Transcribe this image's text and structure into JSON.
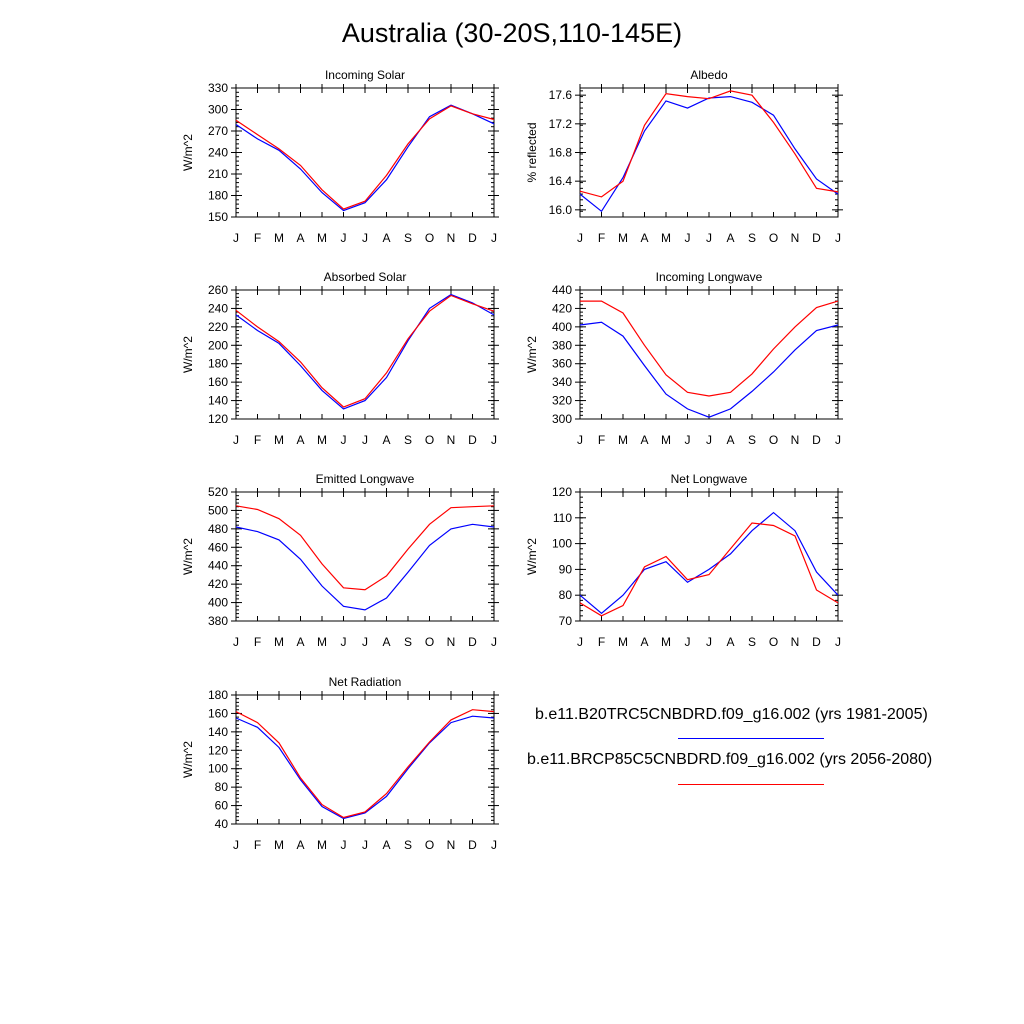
{
  "title": "Australia (30-20S,110-145E)",
  "legend": [
    {
      "label": "b.e11.B20TRC5CNBDRD.f09_g16.002 (yrs 1981-2005)",
      "color": "#0000ff"
    },
    {
      "label": "b.e11.BRCP85C5CNBDRD.f09_g16.002 (yrs 2056-2080)",
      "color": "#ff0000"
    }
  ],
  "colors": {
    "series1": "#0000ff",
    "series2": "#ff0000"
  },
  "chart_data": [
    {
      "type": "line",
      "title": "Incoming Solar",
      "ylabel": "W/m^2",
      "categories": [
        "J",
        "F",
        "M",
        "A",
        "M",
        "J",
        "J",
        "A",
        "S",
        "O",
        "N",
        "D",
        "J"
      ],
      "ylim": [
        150,
        330
      ],
      "yticks": [
        "150",
        "180",
        "210",
        "240",
        "270",
        "300",
        "330"
      ],
      "series": [
        {
          "values": [
            279,
            259,
            243,
            217,
            184,
            159,
            170,
            202,
            248,
            290,
            306,
            294,
            280
          ]
        },
        {
          "values": [
            285,
            265,
            245,
            222,
            188,
            161,
            172,
            208,
            252,
            287,
            305,
            294,
            286
          ]
        }
      ]
    },
    {
      "type": "line",
      "title": "Albedo",
      "ylabel": "% reflected",
      "categories": [
        "J",
        "F",
        "M",
        "A",
        "M",
        "J",
        "J",
        "A",
        "S",
        "O",
        "N",
        "D",
        "J"
      ],
      "ylim": [
        15.9,
        17.7
      ],
      "yticks": [
        "16.0",
        "16.4",
        "16.8",
        "17.2",
        "17.6"
      ],
      "series": [
        {
          "values": [
            16.22,
            15.98,
            16.45,
            17.1,
            17.52,
            17.42,
            17.56,
            17.58,
            17.5,
            17.32,
            16.85,
            16.43,
            16.22
          ]
        },
        {
          "values": [
            16.26,
            16.18,
            16.4,
            17.18,
            17.62,
            17.58,
            17.55,
            17.66,
            17.6,
            17.22,
            16.78,
            16.3,
            16.25
          ]
        }
      ]
    },
    {
      "type": "line",
      "title": "Absorbed Solar",
      "ylabel": "W/m^2",
      "categories": [
        "J",
        "F",
        "M",
        "A",
        "M",
        "J",
        "J",
        "A",
        "S",
        "O",
        "N",
        "D",
        "J"
      ],
      "ylim": [
        120,
        260
      ],
      "yticks": [
        "120",
        "140",
        "160",
        "180",
        "200",
        "220",
        "240",
        "260"
      ],
      "series": [
        {
          "values": [
            233,
            216,
            202,
            178,
            151,
            131,
            140,
            165,
            205,
            240,
            255,
            246,
            233
          ]
        },
        {
          "values": [
            238,
            220,
            204,
            182,
            154,
            133,
            142,
            170,
            207,
            237,
            254,
            245,
            237
          ]
        }
      ]
    },
    {
      "type": "line",
      "title": "Incoming Longwave",
      "ylabel": "W/m^2",
      "categories": [
        "J",
        "F",
        "M",
        "A",
        "M",
        "J",
        "J",
        "A",
        "S",
        "O",
        "N",
        "D",
        "J"
      ],
      "ylim": [
        300,
        440
      ],
      "yticks": [
        "300",
        "320",
        "340",
        "360",
        "380",
        "400",
        "420",
        "440"
      ],
      "series": [
        {
          "values": [
            402,
            405,
            390,
            358,
            327,
            311,
            302,
            311,
            330,
            351,
            375,
            396,
            402
          ]
        },
        {
          "values": [
            428,
            428,
            415,
            380,
            348,
            329,
            325,
            329,
            349,
            376,
            400,
            421,
            428
          ]
        }
      ]
    },
    {
      "type": "line",
      "title": "Emitted Longwave",
      "ylabel": "W/m^2",
      "categories": [
        "J",
        "F",
        "M",
        "A",
        "M",
        "J",
        "J",
        "A",
        "S",
        "O",
        "N",
        "D",
        "J"
      ],
      "ylim": [
        380,
        520
      ],
      "yticks": [
        "380",
        "400",
        "420",
        "440",
        "460",
        "480",
        "500",
        "520"
      ],
      "series": [
        {
          "values": [
            482,
            477,
            468,
            447,
            418,
            396,
            392,
            405,
            433,
            462,
            480,
            485,
            482
          ]
        },
        {
          "values": [
            505,
            501,
            491,
            473,
            442,
            416,
            414,
            429,
            458,
            485,
            503,
            504,
            505
          ]
        }
      ]
    },
    {
      "type": "line",
      "title": "Net Longwave",
      "ylabel": "W/m^2",
      "categories": [
        "J",
        "F",
        "M",
        "A",
        "M",
        "J",
        "J",
        "A",
        "S",
        "O",
        "N",
        "D",
        "J"
      ],
      "ylim": [
        70,
        120
      ],
      "yticks": [
        "70",
        "80",
        "90",
        "100",
        "110",
        "120"
      ],
      "series": [
        {
          "values": [
            80,
            73,
            80,
            90,
            93,
            85,
            90,
            96,
            105,
            112,
            105,
            89,
            80
          ]
        },
        {
          "values": [
            77,
            72,
            76,
            91,
            95,
            86,
            88,
            98,
            108,
            107,
            103,
            82,
            77
          ]
        }
      ]
    },
    {
      "type": "line",
      "title": "Net Radiation",
      "ylabel": "W/m^2",
      "categories": [
        "J",
        "F",
        "M",
        "A",
        "M",
        "J",
        "J",
        "A",
        "S",
        "O",
        "N",
        "D",
        "J"
      ],
      "ylim": [
        40,
        180
      ],
      "yticks": [
        "40",
        "60",
        "80",
        "100",
        "120",
        "140",
        "160",
        "180"
      ],
      "series": [
        {
          "values": [
            155,
            145,
            123,
            88,
            59,
            46,
            52,
            70,
            100,
            128,
            150,
            157,
            155
          ]
        },
        {
          "values": [
            162,
            150,
            128,
            90,
            61,
            47,
            53,
            73,
            102,
            129,
            153,
            164,
            162
          ]
        }
      ]
    }
  ]
}
